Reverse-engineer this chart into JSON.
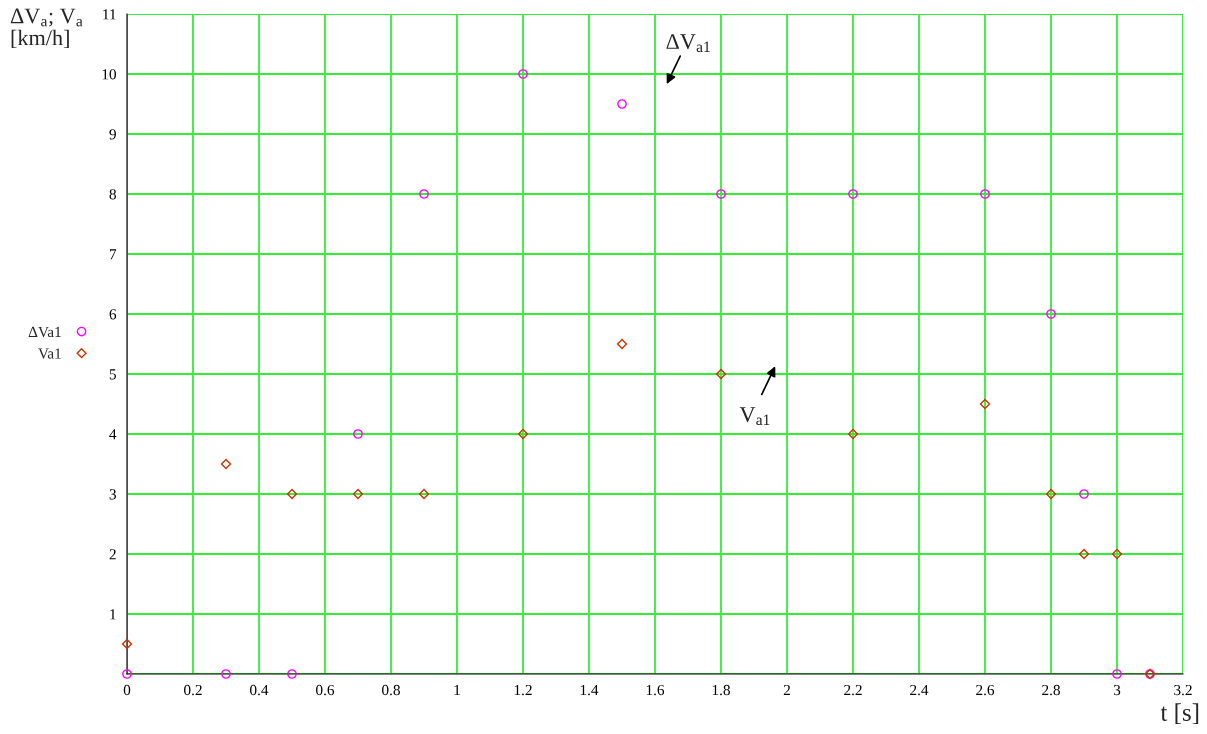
{
  "chart_data": {
    "type": "scatter",
    "ylabel": "ΔV$_{a}$; V$_{a}$\n[km/h]",
    "xlabel": "t [s]",
    "series": [
      {
        "name": "ΔVa1",
        "color": "#ff00ff",
        "marker": "circle",
        "x": [
          0,
          0.3,
          0.5,
          0.7,
          0.9,
          1.2,
          1.5,
          1.8,
          2.2,
          2.6,
          2.8,
          2.9,
          3.0,
          3.1
        ],
        "values": [
          0,
          0,
          0,
          4,
          8,
          10,
          9.5,
          8,
          8,
          8,
          6,
          3,
          0,
          0
        ]
      },
      {
        "name": "Va1",
        "color": "#cc3300",
        "marker": "diamond",
        "x": [
          0,
          0.3,
          0.5,
          0.7,
          0.9,
          1.2,
          1.5,
          1.8,
          2.2,
          2.6,
          2.8,
          2.9,
          3.0,
          3.1
        ],
        "values": [
          0.5,
          3.5,
          3,
          3,
          3,
          4,
          5.5,
          5,
          4,
          4.5,
          3,
          2,
          2,
          0
        ]
      }
    ],
    "annotations": [
      "ΔV$_{a1}$",
      "V$_{a1}$"
    ],
    "xlim": [
      0,
      3.2
    ],
    "xticks": [
      0,
      0.2,
      0.4,
      0.6,
      0.8,
      1,
      1.2,
      1.4,
      1.6,
      1.8,
      2,
      2.2,
      2.4,
      2.6,
      2.8,
      3,
      3.2
    ],
    "ylim": [
      0,
      11
    ],
    "yticks": [
      {
        "value": 0,
        "label": null
      },
      1,
      2,
      3,
      4,
      5,
      6,
      7,
      8,
      9,
      10,
      11
    ],
    "grid": true,
    "legend": "left"
  }
}
